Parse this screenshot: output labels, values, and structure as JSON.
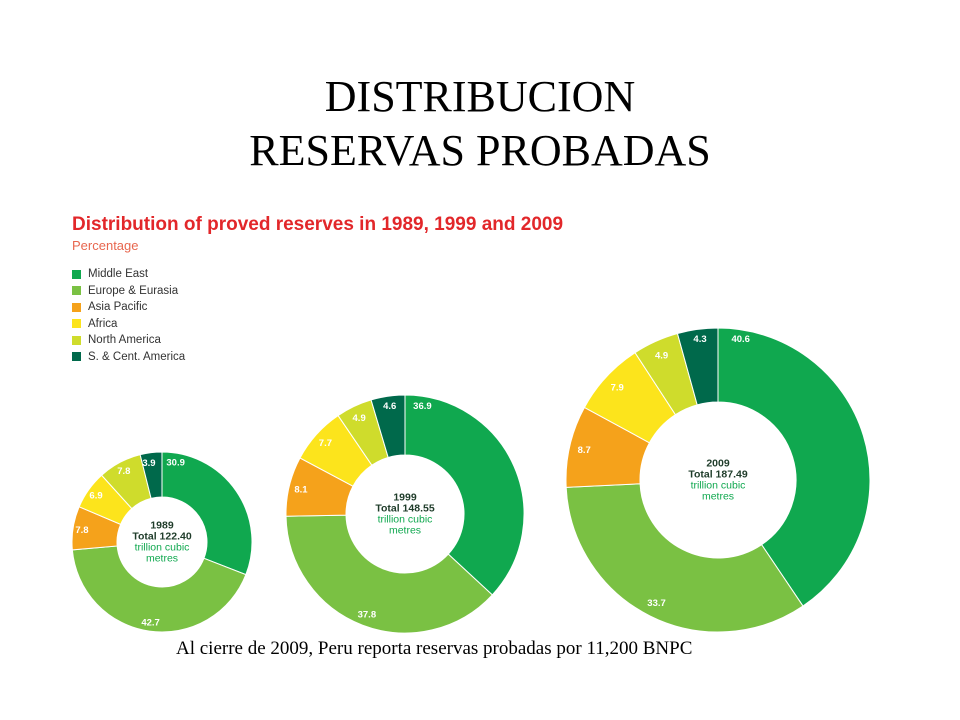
{
  "slide": {
    "title_line1": "DISTRIBUCION",
    "title_line2": "RESERVAS PROBADAS",
    "footnote": "Al cierre de 2009, Peru reporta reservas probadas por 11,200 BNPC"
  },
  "chart_data": {
    "type": "pie",
    "title": "Distribution of proved reserves in 1989, 1999 and 2009",
    "subtitle": "Percentage",
    "legend_position": "top-left",
    "categories": [
      "Middle East",
      "Europe & Eurasia",
      "Asia Pacific",
      "Africa",
      "North America",
      "S. & Cent. America"
    ],
    "colors": [
      "#10a84f",
      "#7ac143",
      "#f5a21b",
      "#fce41c",
      "#cfdc2c",
      "#00694b"
    ],
    "series": [
      {
        "year": "1989",
        "total_label": "Total 122.40",
        "unit": "trillion cubic metres",
        "values": [
          30.9,
          42.7,
          7.8,
          6.9,
          7.8,
          3.9
        ]
      },
      {
        "year": "1999",
        "total_label": "Total 148.55",
        "unit": "trillion cubic metres",
        "values": [
          36.9,
          37.8,
          8.1,
          7.7,
          4.9,
          4.6
        ]
      },
      {
        "year": "2009",
        "total_label": "Total 187.49",
        "unit": "trillion cubic metres",
        "values": [
          40.6,
          33.7,
          8.7,
          7.9,
          4.9,
          4.3
        ]
      }
    ]
  }
}
